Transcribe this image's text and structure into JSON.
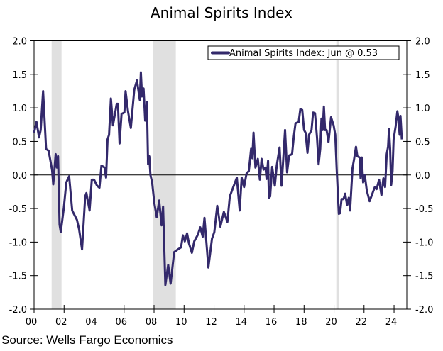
{
  "chart_data": {
    "type": "line",
    "title": "Animal Spirits Index",
    "source": "Source: Wells Fargo Economics",
    "xlabel": "",
    "ylabel": "",
    "xlim": [
      2000,
      2024.85
    ],
    "ylim": [
      -2.0,
      2.0
    ],
    "x_tick_labels": [
      "00",
      "02",
      "04",
      "06",
      "08",
      "10",
      "12",
      "14",
      "16",
      "18",
      "20",
      "22",
      "24"
    ],
    "y_tick_labels": [
      "2.0",
      "1.5",
      "1.0",
      "0.5",
      "0.0",
      "-0.5",
      "-1.0",
      "-1.5",
      "-2.0"
    ],
    "y_ticks": [
      2.0,
      1.5,
      1.0,
      0.5,
      0.0,
      -0.5,
      -1.0,
      -1.5,
      -2.0
    ],
    "grid": false,
    "zero_line": true,
    "legend_position": "top-right",
    "line_color": "#33296b",
    "recession_color": "#e0e0e0",
    "recessions": [
      [
        2001.17,
        2001.83
      ],
      [
        2007.95,
        2009.45
      ],
      [
        2020.15,
        2020.32
      ]
    ],
    "series": [
      {
        "name": "Animal Spirits Index: Jun @ 0.53",
        "x": [
          2000.0,
          2000.16,
          2000.33,
          2000.44,
          2000.6,
          2000.8,
          2000.97,
          2001.2,
          2001.28,
          2001.44,
          2001.52,
          2001.6,
          2001.7,
          2001.78,
          2001.98,
          2002.15,
          2002.34,
          2002.54,
          2002.86,
          2003.0,
          2003.2,
          2003.41,
          2003.49,
          2003.7,
          2003.85,
          2004.0,
          2004.2,
          2004.36,
          2004.49,
          2004.7,
          2004.8,
          2004.9,
          2005.0,
          2005.12,
          2005.26,
          2005.51,
          2005.59,
          2005.7,
          2005.83,
          2006.02,
          2006.1,
          2006.26,
          2006.45,
          2006.68,
          2006.86,
          2007.05,
          2007.12,
          2007.2,
          2007.3,
          2007.41,
          2007.52,
          2007.6,
          2007.68,
          2007.76,
          2007.87,
          2008.02,
          2008.18,
          2008.34,
          2008.5,
          2008.6,
          2008.75,
          2008.94,
          2009.1,
          2009.34,
          2009.58,
          2009.8,
          2009.92,
          2010.05,
          2010.2,
          2010.33,
          2010.52,
          2010.68,
          2010.92,
          2011.08,
          2011.24,
          2011.36,
          2011.62,
          2011.86,
          2012.02,
          2012.21,
          2012.42,
          2012.65,
          2012.89,
          2013.05,
          2013.28,
          2013.52,
          2013.71,
          2013.84,
          2014.0,
          2014.16,
          2014.32,
          2014.47,
          2014.55,
          2014.63,
          2014.76,
          2014.92,
          2015.05,
          2015.17,
          2015.3,
          2015.43,
          2015.5,
          2015.6,
          2015.66,
          2015.74,
          2015.87,
          2016.05,
          2016.18,
          2016.37,
          2016.5,
          2016.73,
          2016.87,
          2017.0,
          2017.2,
          2017.32,
          2017.43,
          2017.64,
          2017.75,
          2017.88,
          2018.0,
          2018.1,
          2018.23,
          2018.33,
          2018.5,
          2018.6,
          2018.73,
          2018.86,
          2018.97,
          2019.08,
          2019.16,
          2019.24,
          2019.32,
          2019.4,
          2019.5,
          2019.63,
          2019.8,
          2019.97,
          2020.08,
          2020.18,
          2020.32,
          2020.4,
          2020.5,
          2020.63,
          2020.74,
          2020.87,
          2020.98,
          2021.07,
          2021.23,
          2021.34,
          2021.46,
          2021.55,
          2021.7,
          2021.77,
          2021.85,
          2021.94,
          2022.05,
          2022.18,
          2022.37,
          2022.6,
          2022.72,
          2022.84,
          2023.0,
          2023.16,
          2023.29,
          2023.4,
          2023.51,
          2023.6,
          2023.66,
          2023.74,
          2023.81,
          2023.9,
          2023.97,
          2024.1,
          2024.22,
          2024.29,
          2024.37,
          2024.43,
          2024.52
        ],
        "y": [
          0.63,
          0.79,
          0.56,
          0.67,
          1.25,
          0.39,
          0.36,
          0.07,
          -0.14,
          0.31,
          0.11,
          0.28,
          -0.74,
          -0.85,
          -0.5,
          -0.11,
          -0.02,
          -0.53,
          -0.67,
          -0.81,
          -1.11,
          -0.32,
          -0.27,
          -0.53,
          -0.07,
          -0.07,
          -0.16,
          -0.19,
          0.14,
          0.11,
          -0.04,
          0.53,
          0.6,
          1.14,
          0.74,
          1.06,
          1.06,
          0.47,
          0.91,
          0.93,
          1.25,
          0.95,
          0.7,
          1.27,
          1.41,
          1.12,
          1.53,
          1.17,
          1.29,
          0.81,
          1.09,
          0.16,
          0.28,
          0.0,
          -0.11,
          -0.42,
          -0.63,
          -0.38,
          -0.75,
          -0.47,
          -1.64,
          -1.34,
          -1.62,
          -1.15,
          -1.11,
          -1.08,
          -0.9,
          -0.99,
          -0.87,
          -1.02,
          -1.16,
          -0.99,
          -0.89,
          -0.78,
          -0.92,
          -0.64,
          -1.38,
          -0.95,
          -0.85,
          -0.46,
          -0.77,
          -0.55,
          -0.7,
          -0.32,
          -0.18,
          -0.04,
          -0.53,
          -0.04,
          -0.18,
          0.02,
          0.06,
          0.39,
          0.25,
          0.63,
          0.11,
          0.24,
          -0.07,
          0.24,
          0.08,
          0.11,
          -0.06,
          0.21,
          -0.34,
          -0.32,
          0.12,
          -0.16,
          0.14,
          0.41,
          -0.16,
          0.67,
          0.04,
          0.29,
          0.31,
          0.58,
          0.77,
          0.79,
          0.98,
          0.97,
          0.67,
          0.63,
          0.33,
          0.6,
          0.67,
          0.93,
          0.92,
          0.56,
          0.16,
          0.39,
          0.84,
          0.67,
          1.02,
          0.67,
          0.67,
          0.49,
          0.86,
          0.74,
          0.6,
          0.07,
          -0.58,
          -0.57,
          -0.36,
          -0.36,
          -0.28,
          -0.45,
          -0.34,
          -0.53,
          0.1,
          0.24,
          0.42,
          0.28,
          0.26,
          -0.05,
          0.26,
          -0.11,
          0.0,
          -0.23,
          -0.39,
          -0.25,
          -0.18,
          -0.21,
          -0.07,
          -0.3,
          -0.05,
          -0.18,
          0.31,
          0.42,
          0.69,
          0.39,
          -0.15,
          0.06,
          0.53,
          0.72,
          0.95,
          0.85,
          0.6,
          0.88,
          0.53
        ]
      }
    ]
  }
}
